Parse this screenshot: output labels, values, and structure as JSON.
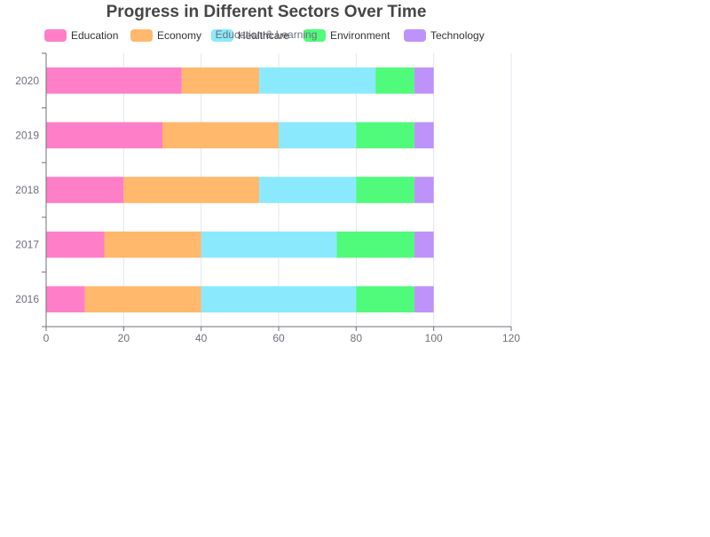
{
  "chart_data": {
    "type": "bar",
    "orientation": "horizontal",
    "stacked": true,
    "title": "Progress in Different Sectors Over Time",
    "subtitle": "Education & Learning",
    "categories": [
      "2016",
      "2017",
      "2018",
      "2019",
      "2020"
    ],
    "series": [
      {
        "name": "Education",
        "color": "#ff7ec8",
        "values": [
          10,
          15,
          20,
          30,
          35
        ]
      },
      {
        "name": "Economy",
        "color": "#ffb86c",
        "values": [
          30,
          25,
          35,
          30,
          20
        ]
      },
      {
        "name": "Healthcare",
        "color": "#8be9fd",
        "values": [
          40,
          35,
          25,
          20,
          30
        ]
      },
      {
        "name": "Environment",
        "color": "#50fa7b",
        "values": [
          15,
          20,
          15,
          15,
          10
        ]
      },
      {
        "name": "Technology",
        "color": "#bd93f9",
        "values": [
          5,
          5,
          5,
          5,
          5
        ]
      }
    ],
    "xlim": [
      0,
      120
    ],
    "xticks": [
      "0",
      "20",
      "40",
      "60",
      "80",
      "100",
      "120"
    ],
    "xlabel": "",
    "ylabel": "",
    "grid": "vertical",
    "legend_position": "top"
  }
}
